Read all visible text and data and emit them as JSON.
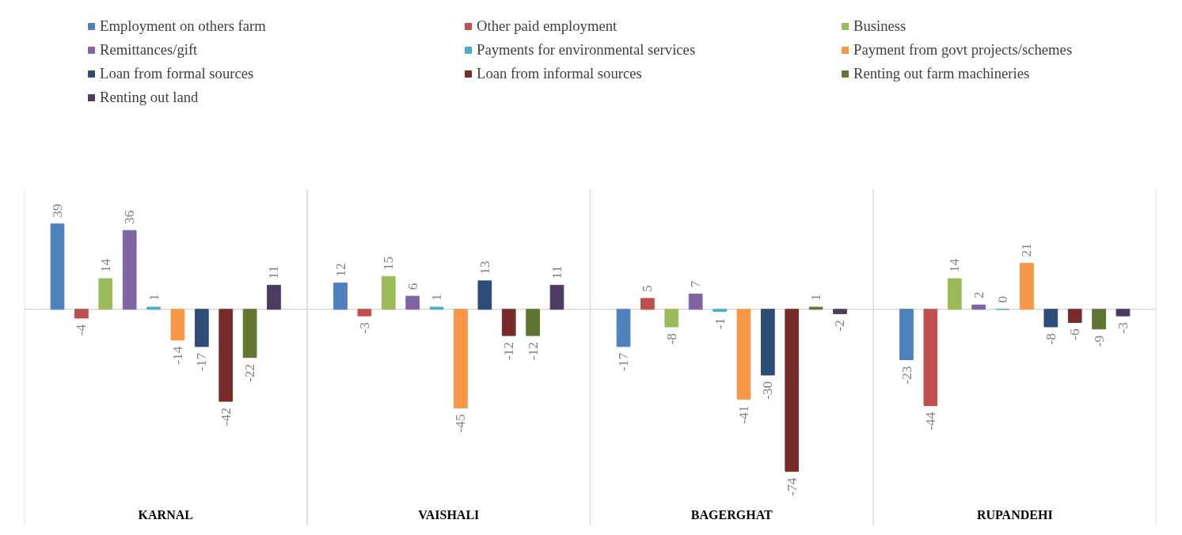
{
  "chart_data": {
    "type": "bar",
    "categories": [
      "KARNAL",
      "VAISHALI",
      "BAGERGHAT",
      "RUPANDEHI"
    ],
    "series": [
      {
        "name": "Employment on others farm",
        "color": "#4f81bd",
        "values": [
          39,
          12,
          -17,
          -23
        ]
      },
      {
        "name": "Other paid employment",
        "color": "#c0504d",
        "values": [
          -4,
          -3,
          5,
          -44
        ]
      },
      {
        "name": "Business",
        "color": "#9bbb59",
        "values": [
          14,
          15,
          -8,
          14
        ]
      },
      {
        "name": "Remittances/gift",
        "color": "#8064a2",
        "values": [
          36,
          6,
          7,
          2
        ]
      },
      {
        "name": "Payments for environmental services",
        "color": "#4bacc6",
        "values": [
          1,
          1,
          -1,
          0
        ]
      },
      {
        "name": "Payment from govt projects/schemes",
        "color": "#f79646",
        "values": [
          -14,
          -45,
          -41,
          21
        ]
      },
      {
        "name": "Loan from formal sources",
        "color": "#2c4d75",
        "values": [
          -17,
          13,
          -30,
          -8
        ]
      },
      {
        "name": "Loan from informal sources",
        "color": "#772c2a",
        "values": [
          -42,
          -12,
          -74,
          -6
        ]
      },
      {
        "name": "Renting out farm machineries",
        "color": "#5f7530",
        "values": [
          -22,
          -12,
          1,
          -9
        ]
      },
      {
        "name": "Renting out land",
        "color": "#4d3b62",
        "values": [
          11,
          11,
          -2,
          -3
        ]
      }
    ],
    "data_labels": true,
    "legend": "top",
    "grid": "x"
  }
}
